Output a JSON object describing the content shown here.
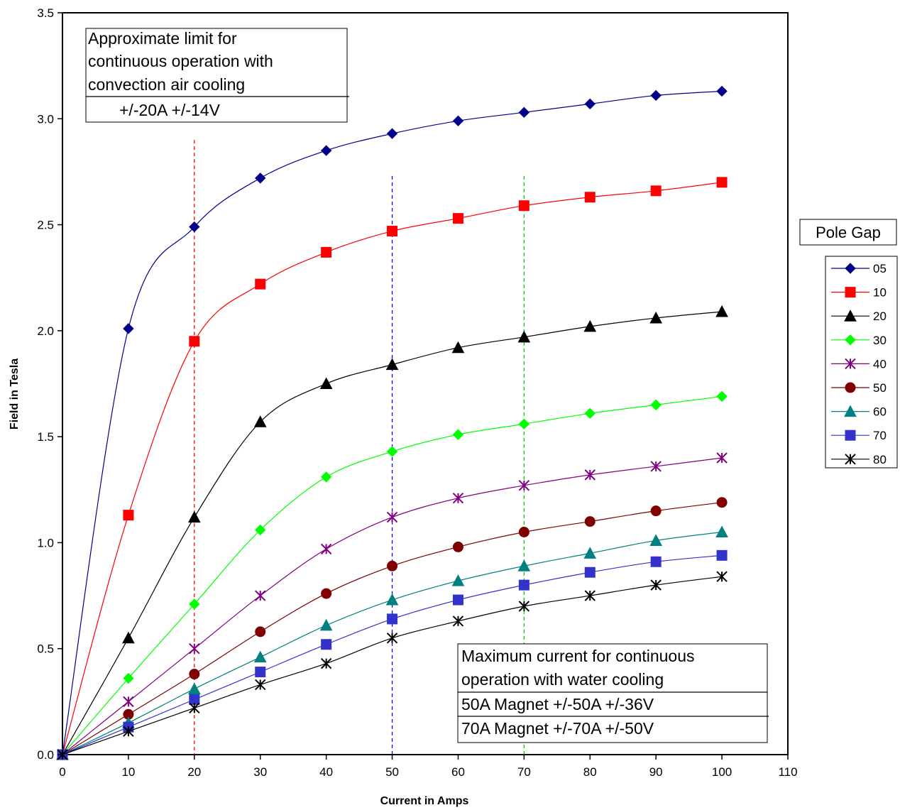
{
  "chart_data": {
    "type": "line",
    "xlabel": "Current in Amps",
    "ylabel": "Field in Tesla",
    "xlim": [
      0,
      110
    ],
    "ylim": [
      0,
      3.5
    ],
    "x_ticks": [
      "0",
      "10",
      "20",
      "30",
      "40",
      "50",
      "60",
      "70",
      "80",
      "90",
      "100",
      "110"
    ],
    "y_ticks": [
      "0.0",
      "0.5",
      "1.0",
      "1.5",
      "2.0",
      "2.5",
      "3.0",
      "3.5"
    ],
    "x_tick_values": [
      0,
      10,
      20,
      30,
      40,
      50,
      60,
      70,
      80,
      90,
      100,
      110
    ],
    "y_tick_values": [
      0,
      0.5,
      1.0,
      1.5,
      2.0,
      2.5,
      3.0,
      3.5
    ],
    "grid": false,
    "x": [
      0,
      10,
      20,
      30,
      40,
      50,
      60,
      70,
      80,
      90,
      100
    ],
    "legend": {
      "title": "Pole Gap",
      "placement": "right"
    },
    "series": [
      {
        "name": "05",
        "color": "#00008B",
        "marker": "diamond",
        "values": [
          0,
          2.01,
          2.49,
          2.72,
          2.85,
          2.93,
          2.99,
          3.03,
          3.07,
          3.11,
          3.13
        ]
      },
      {
        "name": "10",
        "color": "#FF0000",
        "marker": "square",
        "values": [
          0,
          1.13,
          1.95,
          2.22,
          2.37,
          2.47,
          2.53,
          2.59,
          2.63,
          2.66,
          2.7
        ]
      },
      {
        "name": "20",
        "color": "#000000",
        "marker": "triangle",
        "values": [
          0,
          0.55,
          1.12,
          1.57,
          1.75,
          1.84,
          1.92,
          1.97,
          2.02,
          2.06,
          2.09
        ]
      },
      {
        "name": "30",
        "color": "#00FF00",
        "marker": "diamond",
        "values": [
          0,
          0.36,
          0.71,
          1.06,
          1.31,
          1.43,
          1.51,
          1.56,
          1.61,
          1.65,
          1.69
        ]
      },
      {
        "name": "40",
        "color": "#800080",
        "marker": "star",
        "values": [
          0,
          0.25,
          0.5,
          0.75,
          0.97,
          1.12,
          1.21,
          1.27,
          1.32,
          1.36,
          1.4
        ]
      },
      {
        "name": "50",
        "color": "#800000",
        "marker": "circle",
        "values": [
          0,
          0.19,
          0.38,
          0.58,
          0.76,
          0.89,
          0.98,
          1.05,
          1.1,
          1.15,
          1.19
        ]
      },
      {
        "name": "60",
        "color": "#008080",
        "marker": "triangle",
        "values": [
          0,
          0.15,
          0.31,
          0.46,
          0.61,
          0.73,
          0.82,
          0.89,
          0.95,
          1.01,
          1.05
        ]
      },
      {
        "name": "70",
        "color": "#3333CC",
        "marker": "square",
        "values": [
          0,
          0.13,
          0.26,
          0.39,
          0.52,
          0.64,
          0.73,
          0.8,
          0.86,
          0.91,
          0.94
        ]
      },
      {
        "name": "80",
        "color": "#000000",
        "marker": "asterisk",
        "values": [
          0,
          0.11,
          0.22,
          0.33,
          0.43,
          0.55,
          0.63,
          0.7,
          0.75,
          0.8,
          0.84
        ]
      }
    ],
    "reference_lines": [
      {
        "x": 20,
        "color": "#FF0000",
        "y_top": 2.9
      },
      {
        "x": 50,
        "color": "#0000FF",
        "y_top": 2.73
      },
      {
        "x": 70,
        "color": "#00CC00",
        "y_top": 2.73
      }
    ],
    "annotations": [
      {
        "id": "air-cooling",
        "heading": [
          "Approximate limit for",
          "continuous operation with",
          "convection air cooling"
        ],
        "rows": [
          "+/-20A +/-14V"
        ]
      },
      {
        "id": "water-cooling",
        "heading": [
          "Maximum current for continuous",
          "operation with water cooling"
        ],
        "rows": [
          "50A Magnet +/-50A  +/-36V",
          "70A Magnet +/-70A  +/-50V"
        ]
      }
    ]
  }
}
